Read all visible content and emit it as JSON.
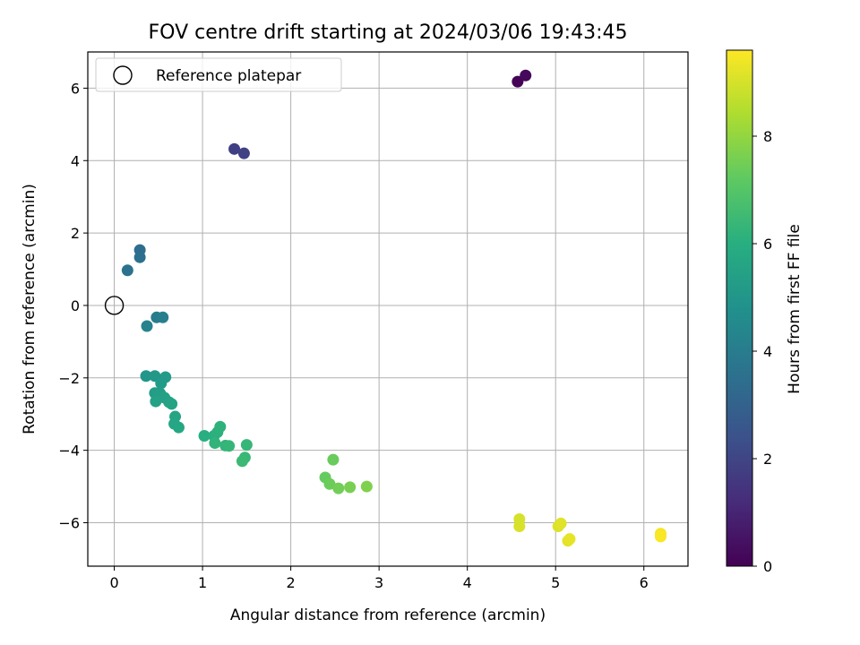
{
  "chart_data": {
    "type": "scatter",
    "title": "FOV centre drift starting at 2024/03/06 19:43:45",
    "xlabel": "Angular distance from reference (arcmin)",
    "ylabel": "Rotation from reference (arcmin)",
    "xlim": [
      -0.3,
      6.5
    ],
    "ylim": [
      -7.2,
      7.0
    ],
    "xticks": [
      "0",
      "1",
      "2",
      "3",
      "4",
      "5",
      "6"
    ],
    "yticks": [
      "−6",
      "−4",
      "−2",
      "0",
      "2",
      "4",
      "6"
    ],
    "grid": true,
    "legend": {
      "placement": "upper-left",
      "label": "Reference platepar"
    },
    "reference_point": {
      "x": 0,
      "y": 0
    },
    "colorbar": {
      "label": "Hours from first FF file",
      "colormap": "viridis",
      "range": [
        0,
        9.6
      ],
      "ticks": [
        "0",
        "2",
        "4",
        "6",
        "8"
      ]
    },
    "points": [
      {
        "x": 4.57,
        "y": 6.18,
        "c": 0.05
      },
      {
        "x": 4.66,
        "y": 6.35,
        "c": 0.2
      },
      {
        "x": 1.36,
        "y": 4.32,
        "c": 1.8
      },
      {
        "x": 1.47,
        "y": 4.2,
        "c": 1.9
      },
      {
        "x": 0.29,
        "y": 1.53,
        "c": 3.4
      },
      {
        "x": 0.29,
        "y": 1.33,
        "c": 3.5
      },
      {
        "x": 0.15,
        "y": 0.97,
        "c": 3.6
      },
      {
        "x": 0.48,
        "y": -0.33,
        "c": 4.0
      },
      {
        "x": 0.55,
        "y": -0.33,
        "c": 4.1
      },
      {
        "x": 0.37,
        "y": -0.57,
        "c": 4.2
      },
      {
        "x": 0.36,
        "y": -1.95,
        "c": 5.0
      },
      {
        "x": 0.46,
        "y": -1.95,
        "c": 5.1
      },
      {
        "x": 0.58,
        "y": -1.98,
        "c": 5.2
      },
      {
        "x": 0.53,
        "y": -2.15,
        "c": 5.2
      },
      {
        "x": 0.46,
        "y": -2.42,
        "c": 5.3
      },
      {
        "x": 0.52,
        "y": -2.43,
        "c": 5.35
      },
      {
        "x": 0.57,
        "y": -2.55,
        "c": 5.4
      },
      {
        "x": 0.47,
        "y": -2.65,
        "c": 5.45
      },
      {
        "x": 0.62,
        "y": -2.67,
        "c": 5.5
      },
      {
        "x": 0.65,
        "y": -2.72,
        "c": 5.55
      },
      {
        "x": 0.69,
        "y": -3.07,
        "c": 5.6
      },
      {
        "x": 0.68,
        "y": -3.27,
        "c": 5.65
      },
      {
        "x": 0.73,
        "y": -3.37,
        "c": 5.7
      },
      {
        "x": 1.02,
        "y": -3.6,
        "c": 6.0
      },
      {
        "x": 1.13,
        "y": -3.6,
        "c": 6.05
      },
      {
        "x": 1.17,
        "y": -3.5,
        "c": 6.1
      },
      {
        "x": 1.2,
        "y": -3.35,
        "c": 6.15
      },
      {
        "x": 1.14,
        "y": -3.8,
        "c": 6.2
      },
      {
        "x": 1.26,
        "y": -3.87,
        "c": 6.25
      },
      {
        "x": 1.3,
        "y": -3.88,
        "c": 6.3
      },
      {
        "x": 1.5,
        "y": -3.85,
        "c": 6.35
      },
      {
        "x": 1.48,
        "y": -4.2,
        "c": 6.4
      },
      {
        "x": 1.45,
        "y": -4.3,
        "c": 6.45
      },
      {
        "x": 2.39,
        "y": -4.75,
        "c": 7.3
      },
      {
        "x": 2.48,
        "y": -4.26,
        "c": 7.35
      },
      {
        "x": 2.44,
        "y": -4.93,
        "c": 7.4
      },
      {
        "x": 2.54,
        "y": -5.05,
        "c": 7.5
      },
      {
        "x": 2.67,
        "y": -5.02,
        "c": 7.6
      },
      {
        "x": 2.86,
        "y": -5.0,
        "c": 7.7
      },
      {
        "x": 4.59,
        "y": -5.9,
        "c": 9.0
      },
      {
        "x": 4.59,
        "y": -6.1,
        "c": 9.05
      },
      {
        "x": 5.03,
        "y": -6.1,
        "c": 9.1
      },
      {
        "x": 5.06,
        "y": -6.02,
        "c": 9.15
      },
      {
        "x": 5.14,
        "y": -6.5,
        "c": 9.2
      },
      {
        "x": 5.16,
        "y": -6.45,
        "c": 9.25
      },
      {
        "x": 6.19,
        "y": -6.3,
        "c": 9.5
      },
      {
        "x": 6.19,
        "y": -6.38,
        "c": 9.55
      }
    ]
  }
}
